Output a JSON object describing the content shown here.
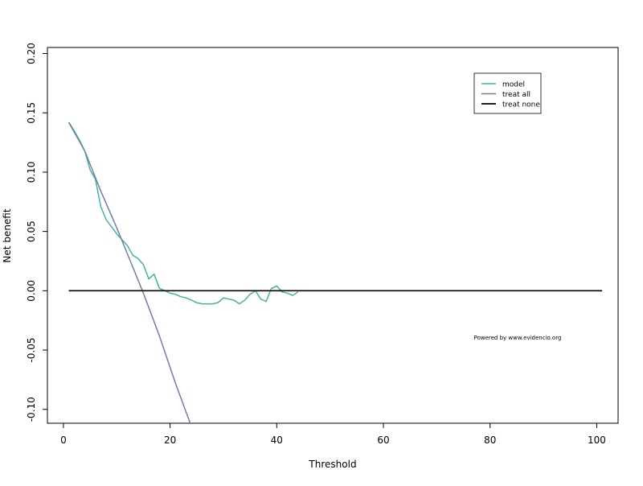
{
  "chart_data": {
    "type": "line",
    "title": "",
    "xlabel": "Threshold",
    "ylabel": "Net benefit",
    "xlim": [
      -3,
      104
    ],
    "ylim": [
      -0.1117,
      0.2051
    ],
    "x_ticks": [
      0,
      20,
      40,
      60,
      80,
      100
    ],
    "x_tick_labels": [
      "0",
      "20",
      "40",
      "60",
      "80",
      "100"
    ],
    "y_ticks": [
      -0.1,
      -0.05,
      0.0,
      0.05,
      0.1,
      0.15,
      0.2
    ],
    "y_tick_labels": [
      "-0.10",
      "-0.05",
      "0.00",
      "0.05",
      "0.10",
      "0.15",
      "0.20"
    ],
    "grid": false,
    "legend_position": "top-right",
    "annotation": "Powered by www.evidencio.org",
    "series": [
      {
        "name": "model",
        "color": "#45b39c",
        "x": [
          1,
          2,
          3,
          4,
          5,
          6,
          7,
          8,
          9,
          10,
          11,
          12,
          13,
          14,
          15,
          16,
          17,
          18,
          19,
          20,
          21,
          22,
          23,
          24,
          25,
          26,
          27,
          28,
          29,
          30,
          31,
          32,
          33,
          34,
          35,
          36,
          37,
          38,
          39,
          40,
          41,
          42,
          43,
          44
        ],
        "y": [
          0.142,
          0.135,
          0.127,
          0.118,
          0.102,
          0.094,
          0.071,
          0.06,
          0.054,
          0.048,
          0.043,
          0.038,
          0.03,
          0.027,
          0.022,
          0.01,
          0.014,
          0.002,
          0.0,
          -0.002,
          -0.003,
          -0.005,
          -0.006,
          -0.008,
          -0.01,
          -0.011,
          -0.011,
          -0.011,
          -0.01,
          -0.006,
          -0.007,
          -0.008,
          -0.011,
          -0.008,
          -0.003,
          -0.0,
          -0.007,
          -0.009,
          0.002,
          0.004,
          -0.001,
          -0.002,
          -0.004,
          -0.001
        ]
      },
      {
        "name": "treat all",
        "color": "#6d7fa8",
        "x": [
          1,
          4,
          7,
          10,
          13,
          15,
          18,
          21,
          23.8
        ],
        "y": [
          0.142,
          0.118,
          0.084,
          0.053,
          0.02,
          -0.002,
          -0.038,
          -0.078,
          -0.112
        ]
      },
      {
        "name": "treat none",
        "color": "#000000",
        "x": [
          1,
          101
        ],
        "y": [
          0,
          0
        ]
      }
    ]
  }
}
